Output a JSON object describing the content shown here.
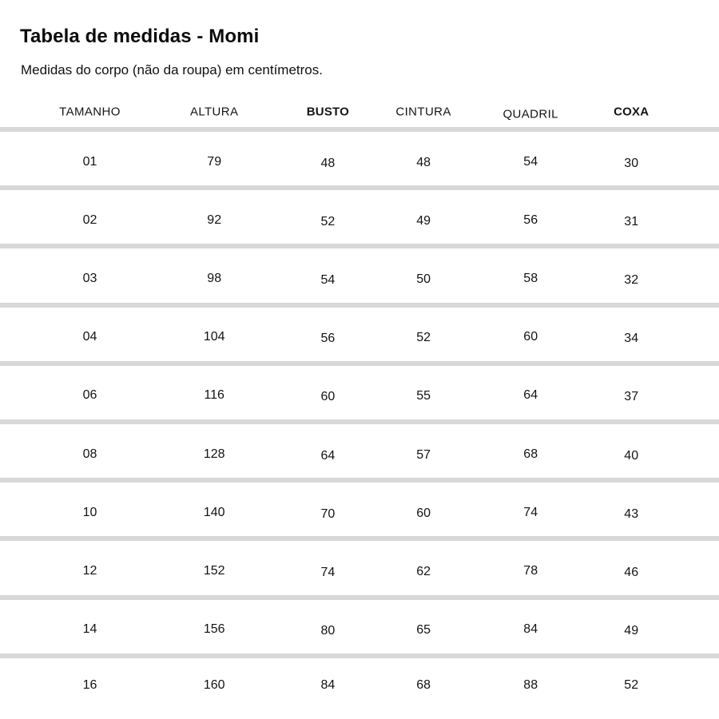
{
  "header": {
    "title": "Tabela de medidas - Momi",
    "subtitle": "Medidas do corpo (não da roupa) em centímetros."
  },
  "chart_data": {
    "type": "table",
    "title": "Tabela de medidas - Momi",
    "subtitle": "Medidas do corpo (não da roupa) em centímetros.",
    "units": "centímetros",
    "columns": [
      {
        "label": "TAMANHO",
        "bold": false
      },
      {
        "label": "ALTURA",
        "bold": false
      },
      {
        "label": "BUSTO",
        "bold": true
      },
      {
        "label": "CINTURA",
        "bold": false
      },
      {
        "label": "QUADRIL",
        "bold": false
      },
      {
        "label": "COXA",
        "bold": true
      }
    ],
    "rows": [
      [
        "01",
        "79",
        "48",
        "48",
        "54",
        "30"
      ],
      [
        "02",
        "92",
        "52",
        "49",
        "56",
        "31"
      ],
      [
        "03",
        "98",
        "54",
        "50",
        "58",
        "32"
      ],
      [
        "04",
        "104",
        "56",
        "52",
        "60",
        "34"
      ],
      [
        "06",
        "116",
        "60",
        "55",
        "64",
        "37"
      ],
      [
        "08",
        "128",
        "64",
        "57",
        "68",
        "40"
      ],
      [
        "10",
        "140",
        "70",
        "60",
        "74",
        "43"
      ],
      [
        "12",
        "152",
        "74",
        "62",
        "78",
        "46"
      ],
      [
        "14",
        "156",
        "80",
        "65",
        "84",
        "49"
      ],
      [
        "16",
        "160",
        "84",
        "68",
        "88",
        "52"
      ]
    ]
  },
  "colors": {
    "background": "#ffffff",
    "text": "#131313",
    "divider": "#d8d8d8"
  }
}
